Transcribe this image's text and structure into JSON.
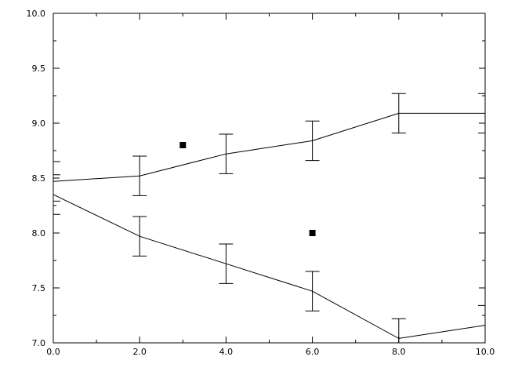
{
  "chart_data": {
    "type": "line",
    "x": [
      0,
      2,
      4,
      6,
      8,
      10
    ],
    "series": [
      {
        "color": "#000000",
        "values": [
          8.47,
          8.52,
          8.72,
          8.84,
          9.09,
          9.09
        ],
        "errors": [
          0.18,
          0.18,
          0.18,
          0.18,
          0.18,
          0.18
        ]
      },
      {
        "color": "#000000",
        "values": [
          8.35,
          7.97,
          7.72,
          7.47,
          7.04,
          7.16
        ],
        "errors": [
          0.18,
          0.18,
          0.18,
          0.18,
          0.18,
          0.18
        ]
      }
    ],
    "points": {
      "type": "scatter",
      "color": "#000000",
      "x": [
        3,
        6
      ],
      "values": [
        8.8,
        8.0
      ]
    },
    "xlim": [
      0,
      10
    ],
    "xticks": [
      {
        "value": 0,
        "label": "0.0"
      },
      {
        "value": 2,
        "label": "2.0"
      },
      {
        "value": 4,
        "label": "4.0"
      },
      {
        "value": 6,
        "label": "6.0"
      },
      {
        "value": 8,
        "label": "8.0"
      },
      {
        "value": 10,
        "label": "10.0"
      }
    ],
    "ylim": [
      7,
      10
    ],
    "yticks": [
      {
        "value": 7,
        "label": "7.0"
      },
      7.5,
      {
        "value": 8,
        "label": "8.0"
      },
      8.5,
      {
        "value": 9,
        "label": "9.0"
      },
      9.5,
      {
        "value": 10,
        "label": "10.0"
      }
    ]
  }
}
